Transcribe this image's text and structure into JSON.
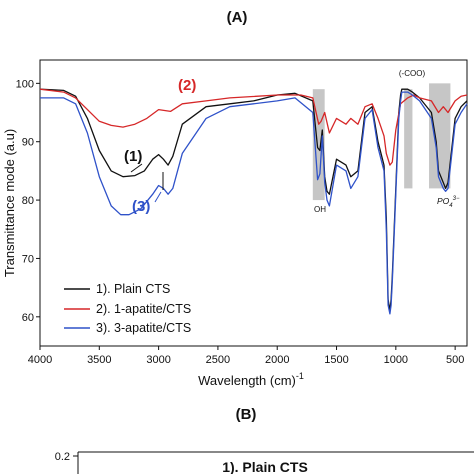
{
  "chart_data": [
    {
      "type": "line",
      "panel_label": "(A)",
      "xlabel": "Wavelength (cm)",
      "xlabel_sup": "-1",
      "ylabel": "Transmittance mode (a.u)",
      "x_reversed": true,
      "xlim": [
        4000,
        400
      ],
      "ylim": [
        55,
        104
      ],
      "x_ticks": [
        4000,
        3500,
        3000,
        2500,
        2000,
        1500,
        1000,
        500
      ],
      "y_ticks": [
        60,
        70,
        80,
        90,
        100
      ],
      "grid": false,
      "legend_position": "bottom-left",
      "colors": {
        "series1": "#111111",
        "series2": "#d62728",
        "series3": "#2f52c9",
        "band": "#b8b8b8"
      },
      "series": [
        {
          "name": "1). Plain CTS",
          "color": "#111111",
          "points": [
            [
              4000,
              99
            ],
            [
              3800,
              98.8
            ],
            [
              3700,
              97.8
            ],
            [
              3600,
              94
            ],
            [
              3500,
              88.5
            ],
            [
              3400,
              85
            ],
            [
              3300,
              84
            ],
            [
              3200,
              84.2
            ],
            [
              3120,
              85
            ],
            [
              3050,
              87
            ],
            [
              3000,
              87.8
            ],
            [
              2960,
              87
            ],
            [
              2920,
              86
            ],
            [
              2880,
              87.5
            ],
            [
              2800,
              93
            ],
            [
              2600,
              96
            ],
            [
              2400,
              96.5
            ],
            [
              2200,
              97
            ],
            [
              2000,
              98
            ],
            [
              1850,
              98.3
            ],
            [
              1700,
              97
            ],
            [
              1660,
              89
            ],
            [
              1640,
              88.5
            ],
            [
              1620,
              92
            ],
            [
              1600,
              84
            ],
            [
              1580,
              81.5
            ],
            [
              1560,
              81
            ],
            [
              1500,
              87
            ],
            [
              1420,
              86
            ],
            [
              1380,
              84
            ],
            [
              1320,
              85
            ],
            [
              1260,
              95
            ],
            [
              1200,
              96
            ],
            [
              1150,
              90
            ],
            [
              1100,
              86
            ],
            [
              1080,
              77
            ],
            [
              1065,
              63
            ],
            [
              1050,
              61
            ],
            [
              1040,
              63
            ],
            [
              1030,
              67
            ],
            [
              1000,
              82
            ],
            [
              975,
              95
            ],
            [
              960,
              98
            ],
            [
              950,
              99
            ],
            [
              900,
              99
            ],
            [
              860,
              98.5
            ],
            [
              800,
              97.5
            ],
            [
              700,
              95
            ],
            [
              660,
              90
            ],
            [
              640,
              85
            ],
            [
              620,
              84
            ],
            [
              600,
              83
            ],
            [
              580,
              82
            ],
            [
              560,
              83
            ],
            [
              500,
              94
            ],
            [
              450,
              96
            ],
            [
              400,
              97
            ]
          ]
        },
        {
          "name": "2). 1-apatite/CTS",
          "color": "#d62728",
          "points": [
            [
              4000,
              99
            ],
            [
              3800,
              98.5
            ],
            [
              3700,
              97.5
            ],
            [
              3600,
              95.5
            ],
            [
              3500,
              93.5
            ],
            [
              3400,
              92.8
            ],
            [
              3300,
              92.5
            ],
            [
              3200,
              93
            ],
            [
              3100,
              94
            ],
            [
              3000,
              95.5
            ],
            [
              2900,
              95.2
            ],
            [
              2800,
              96.5
            ],
            [
              2600,
              97
            ],
            [
              2400,
              97.5
            ],
            [
              2000,
              98
            ],
            [
              1800,
              98
            ],
            [
              1700,
              97.5
            ],
            [
              1650,
              93
            ],
            [
              1630,
              93.5
            ],
            [
              1600,
              95
            ],
            [
              1560,
              91.5
            ],
            [
              1500,
              94
            ],
            [
              1420,
              93
            ],
            [
              1380,
              94
            ],
            [
              1320,
              93
            ],
            [
              1260,
              96
            ],
            [
              1200,
              96.5
            ],
            [
              1150,
              94
            ],
            [
              1100,
              91
            ],
            [
              1080,
              88
            ],
            [
              1050,
              86
            ],
            [
              1030,
              86.5
            ],
            [
              1000,
              92
            ],
            [
              960,
              96.5
            ],
            [
              900,
              97.5
            ],
            [
              850,
              98
            ],
            [
              800,
              97.5
            ],
            [
              700,
              97
            ],
            [
              640,
              95
            ],
            [
              600,
              96
            ],
            [
              560,
              95
            ],
            [
              500,
              97
            ],
            [
              450,
              97.8
            ],
            [
              400,
              98
            ]
          ]
        },
        {
          "name": "3). 3-apatite/CTS",
          "color": "#2f52c9",
          "points": [
            [
              4000,
              97.5
            ],
            [
              3800,
              97.5
            ],
            [
              3700,
              96.5
            ],
            [
              3600,
              91.5
            ],
            [
              3500,
              84
            ],
            [
              3400,
              79
            ],
            [
              3320,
              77.5
            ],
            [
              3250,
              77.5
            ],
            [
              3150,
              78.5
            ],
            [
              3050,
              81
            ],
            [
              3000,
              82.5
            ],
            [
              2960,
              82
            ],
            [
              2920,
              81
            ],
            [
              2880,
              82
            ],
            [
              2800,
              88
            ],
            [
              2600,
              94
            ],
            [
              2400,
              96
            ],
            [
              2200,
              96.5
            ],
            [
              2000,
              97
            ],
            [
              1850,
              97.5
            ],
            [
              1700,
              95
            ],
            [
              1660,
              83.5
            ],
            [
              1640,
              84.5
            ],
            [
              1620,
              91
            ],
            [
              1600,
              83
            ],
            [
              1580,
              80
            ],
            [
              1560,
              79
            ],
            [
              1500,
              86
            ],
            [
              1420,
              85
            ],
            [
              1380,
              82
            ],
            [
              1320,
              84
            ],
            [
              1260,
              94
            ],
            [
              1200,
              95.5
            ],
            [
              1150,
              89
            ],
            [
              1100,
              85
            ],
            [
              1080,
              75
            ],
            [
              1065,
              62
            ],
            [
              1050,
              60.5
            ],
            [
              1040,
              62
            ],
            [
              1030,
              66
            ],
            [
              1000,
              81
            ],
            [
              975,
              94
            ],
            [
              960,
              97
            ],
            [
              950,
              98.5
            ],
            [
              900,
              98.5
            ],
            [
              860,
              98
            ],
            [
              800,
              97
            ],
            [
              700,
              94
            ],
            [
              660,
              89
            ],
            [
              640,
              84
            ],
            [
              620,
              83
            ],
            [
              600,
              82
            ],
            [
              580,
              81.5
            ],
            [
              560,
              82
            ],
            [
              500,
              93
            ],
            [
              450,
              95
            ],
            [
              400,
              96.5
            ]
          ]
        }
      ],
      "bands": [
        {
          "x_from": 1700,
          "x_to": 1600,
          "y_from": 80,
          "y_to": 99
        },
        {
          "x_from": 930,
          "x_to": 860,
          "y_from": 82,
          "y_to": 99
        },
        {
          "x_from": 720,
          "x_to": 540,
          "y_from": 82,
          "y_to": 100
        }
      ],
      "annotations": {
        "oh": "OH",
        "coo": "(-COO)",
        "po4_base": "PO",
        "po4_sub": "4",
        "po4_sup": "3−"
      },
      "series_labels": [
        "(1)",
        "(2)",
        "(3)"
      ]
    },
    {
      "type": "line",
      "panel_label": "(B)",
      "y_ticks_visible": [
        "0.2"
      ],
      "legend_visible": "1). Plain CTS"
    }
  ]
}
